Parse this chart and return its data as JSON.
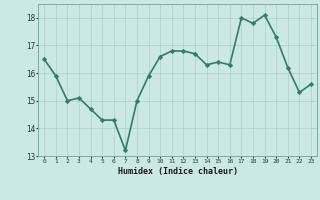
{
  "x": [
    0,
    1,
    2,
    3,
    4,
    5,
    6,
    7,
    8,
    9,
    10,
    11,
    12,
    13,
    14,
    15,
    16,
    17,
    18,
    19,
    20,
    21,
    22,
    23
  ],
  "y": [
    16.5,
    15.9,
    15.0,
    15.1,
    14.7,
    14.3,
    14.3,
    13.2,
    15.0,
    15.9,
    16.6,
    16.8,
    16.8,
    16.7,
    16.3,
    16.4,
    16.3,
    18.0,
    17.8,
    18.1,
    17.3,
    16.2,
    15.3,
    15.6
  ],
  "xlabel": "Humidex (Indice chaleur)",
  "ylim": [
    13,
    18.5
  ],
  "xlim": [
    -0.5,
    23.5
  ],
  "yticks": [
    13,
    14,
    15,
    16,
    17,
    18
  ],
  "xticks": [
    0,
    1,
    2,
    3,
    4,
    5,
    6,
    7,
    8,
    9,
    10,
    11,
    12,
    13,
    14,
    15,
    16,
    17,
    18,
    19,
    20,
    21,
    22,
    23
  ],
  "line_color": "#2e7d6e",
  "marker_color": "#2e7d6e",
  "bg_color": "#cce8e2",
  "grid_color": "#b0cfca",
  "tick_label_color": "#2a3535",
  "xlabel_color": "#1a1a1a",
  "marker": "D",
  "markersize": 2.2,
  "linewidth": 1.2
}
